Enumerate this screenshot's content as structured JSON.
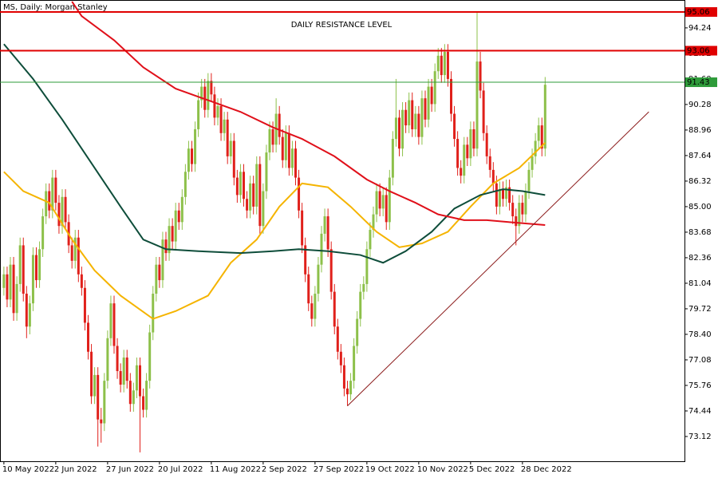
{
  "chart_data": {
    "type": "candlestick",
    "header": "MS, Daily: Morgan Stanley",
    "title": "DAILY RESISTANCE LEVEL",
    "up_color": "#8dc04a",
    "down_color": "#e0201b",
    "ylim": [
      71.84,
      95.68
    ],
    "yticks": [
      73.12,
      74.44,
      75.76,
      77.08,
      {
        "value": 78.4,
        "label": "78.40"
      },
      79.72,
      81.04,
      82.36,
      83.68,
      {
        "value": 85,
        "label": "85.00"
      },
      86.32,
      87.64,
      88.96,
      90.28,
      {
        "value": 91.6,
        "label": "91.60"
      },
      92.92,
      94.24
    ],
    "xlim": [
      -1.2,
      210
    ],
    "xticks": [
      {
        "value": 0,
        "label": "10 May 2022"
      },
      {
        "value": 16,
        "label": "2 Jun 2022"
      },
      {
        "value": 32,
        "label": "27 Jun 2022"
      },
      {
        "value": 48,
        "label": "20 Jul 2022"
      },
      {
        "value": 64,
        "label": "11 Aug 2022"
      },
      {
        "value": 80,
        "label": "2 Sep 2022"
      },
      {
        "value": 96,
        "label": "27 Sep 2022"
      },
      {
        "value": 112,
        "label": "19 Oct 2022"
      },
      {
        "value": 128,
        "label": "10 Nov 2022"
      },
      {
        "value": 144,
        "label": "5 Dec 2022"
      },
      {
        "value": 160,
        "label": "28 Dec 2022"
      }
    ],
    "ohlc": [
      [
        80.8,
        81.9,
        80.4,
        81.5
      ],
      [
        81.5,
        81.9,
        79.8,
        80.2
      ],
      [
        80.2,
        82.4,
        79.8,
        82.0
      ],
      [
        82.0,
        82.4,
        79.1,
        79.5
      ],
      [
        79.5,
        81.4,
        79.1,
        81.0
      ],
      [
        81.0,
        83.4,
        80.6,
        83.0
      ],
      [
        83.0,
        83.4,
        80.1,
        80.5
      ],
      [
        80.5,
        80.9,
        78.2,
        78.8
      ],
      [
        78.8,
        80.4,
        78.4,
        80.0
      ],
      [
        80.0,
        82.9,
        79.6,
        82.5
      ],
      [
        82.5,
        82.9,
        80.8,
        81.2
      ],
      [
        81.2,
        83.2,
        80.8,
        82.8
      ],
      [
        82.8,
        84.9,
        82.4,
        84.5
      ],
      [
        84.5,
        86.2,
        84.1,
        85.8
      ],
      [
        85.8,
        86.2,
        84.4,
        84.8
      ],
      [
        84.8,
        86.9,
        84.4,
        86.5
      ],
      [
        86.5,
        86.9,
        84.8,
        85.2
      ],
      [
        85.2,
        85.6,
        83.6,
        84.0
      ],
      [
        84.0,
        85.9,
        83.6,
        85.5
      ],
      [
        85.5,
        85.9,
        83.8,
        84.2
      ],
      [
        84.2,
        84.6,
        82.6,
        83.0
      ],
      [
        83.0,
        83.4,
        81.8,
        82.2
      ],
      [
        82.2,
        83.8,
        81.8,
        83.4
      ],
      [
        83.4,
        83.8,
        81.1,
        81.5
      ],
      [
        81.5,
        81.9,
        80.4,
        80.8
      ],
      [
        80.8,
        81.2,
        78.6,
        79.0
      ],
      [
        79.0,
        79.4,
        77.1,
        77.5
      ],
      [
        77.5,
        77.9,
        74.8,
        75.2
      ],
      [
        75.2,
        76.7,
        74.8,
        76.3
      ],
      [
        76.3,
        76.7,
        72.6,
        74.0
      ],
      [
        74.0,
        74.6,
        72.8,
        73.8
      ],
      [
        73.8,
        76.4,
        73.4,
        76.0
      ],
      [
        76.0,
        78.6,
        75.6,
        78.2
      ],
      [
        78.2,
        80.4,
        77.8,
        80.0
      ],
      [
        80.0,
        80.4,
        77.4,
        77.8
      ],
      [
        77.8,
        78.2,
        76.1,
        76.5
      ],
      [
        76.5,
        76.9,
        75.4,
        75.8
      ],
      [
        75.8,
        77.6,
        75.4,
        77.2
      ],
      [
        77.2,
        77.6,
        75.6,
        76.0
      ],
      [
        76.0,
        76.4,
        74.4,
        74.8
      ],
      [
        74.8,
        75.9,
        74.4,
        75.5
      ],
      [
        75.5,
        77.2,
        75.1,
        76.8
      ],
      [
        76.8,
        77.2,
        72.3,
        75.2
      ],
      [
        75.2,
        75.6,
        74.1,
        74.5
      ],
      [
        74.5,
        76.4,
        74.1,
        76.0
      ],
      [
        76.0,
        78.9,
        75.6,
        78.5
      ],
      [
        78.5,
        80.9,
        78.1,
        80.5
      ],
      [
        80.5,
        82.4,
        80.1,
        82.0
      ],
      [
        82.0,
        82.4,
        80.8,
        81.2
      ],
      [
        81.2,
        83.7,
        80.8,
        83.3
      ],
      [
        83.3,
        83.7,
        82.2,
        82.6
      ],
      [
        82.6,
        84.4,
        82.2,
        84.0
      ],
      [
        84.0,
        84.4,
        82.8,
        83.2
      ],
      [
        83.2,
        85.2,
        82.8,
        84.8
      ],
      [
        84.8,
        85.2,
        83.8,
        84.2
      ],
      [
        84.2,
        85.9,
        83.8,
        85.5
      ],
      [
        85.5,
        87.2,
        85.1,
        86.8
      ],
      [
        86.8,
        88.4,
        86.4,
        88.0
      ],
      [
        88.0,
        88.4,
        86.8,
        87.2
      ],
      [
        87.2,
        89.4,
        86.8,
        89.0
      ],
      [
        89.0,
        90.9,
        88.6,
        90.5
      ],
      [
        90.5,
        91.6,
        90.1,
        91.2
      ],
      [
        91.2,
        91.6,
        89.6,
        90.0
      ],
      [
        90.0,
        91.9,
        89.6,
        91.5
      ],
      [
        91.5,
        91.9,
        90.4,
        90.8
      ],
      [
        90.8,
        91.2,
        89.2,
        89.6
      ],
      [
        89.6,
        90.6,
        89.2,
        90.2
      ],
      [
        90.2,
        90.6,
        88.4,
        88.8
      ],
      [
        88.8,
        89.9,
        88.4,
        89.5
      ],
      [
        89.5,
        89.9,
        87.2,
        87.6
      ],
      [
        87.6,
        88.8,
        87.2,
        88.4
      ],
      [
        88.4,
        88.8,
        86.1,
        86.5
      ],
      [
        86.5,
        86.9,
        85.2,
        85.6
      ],
      [
        85.6,
        87.2,
        85.2,
        86.8
      ],
      [
        86.8,
        87.2,
        85.0,
        85.4
      ],
      [
        85.4,
        85.8,
        84.4,
        84.8
      ],
      [
        84.8,
        86.6,
        84.4,
        86.2
      ],
      [
        86.2,
        86.6,
        84.6,
        85.0
      ],
      [
        85.0,
        87.6,
        84.6,
        87.2
      ],
      [
        87.2,
        87.6,
        83.6,
        84.0
      ],
      [
        84.0,
        86.2,
        83.6,
        85.8
      ],
      [
        85.8,
        88.2,
        85.4,
        87.8
      ],
      [
        87.8,
        89.4,
        87.4,
        89.0
      ],
      [
        89.0,
        89.4,
        87.8,
        88.2
      ],
      [
        88.2,
        90.6,
        87.8,
        89.8
      ],
      [
        89.8,
        90.2,
        88.2,
        88.6
      ],
      [
        88.6,
        89.0,
        87.0,
        87.4
      ],
      [
        87.4,
        89.2,
        87.0,
        88.8
      ],
      [
        88.8,
        89.2,
        86.6,
        87.0
      ],
      [
        87.0,
        88.4,
        86.6,
        88.0
      ],
      [
        88.0,
        88.4,
        86.1,
        86.5
      ],
      [
        86.5,
        86.9,
        84.4,
        84.8
      ],
      [
        84.8,
        85.2,
        82.6,
        83.0
      ],
      [
        83.0,
        83.4,
        81.1,
        81.5
      ],
      [
        81.5,
        81.9,
        79.6,
        80.0
      ],
      [
        80.0,
        80.4,
        78.8,
        79.2
      ],
      [
        79.2,
        80.9,
        78.8,
        80.5
      ],
      [
        80.5,
        82.4,
        80.1,
        82.0
      ],
      [
        82.0,
        84.0,
        81.6,
        83.6
      ],
      [
        83.6,
        84.9,
        83.2,
        84.5
      ],
      [
        84.5,
        84.9,
        82.4,
        82.8
      ],
      [
        82.8,
        83.2,
        80.2,
        80.6
      ],
      [
        80.6,
        81.0,
        78.4,
        78.8
      ],
      [
        78.8,
        79.2,
        77.1,
        77.5
      ],
      [
        77.5,
        77.9,
        76.4,
        76.8
      ],
      [
        76.8,
        77.2,
        75.2,
        75.6
      ],
      [
        75.6,
        76.0,
        74.7,
        75.3
      ],
      [
        75.3,
        76.4,
        75.0,
        76.0
      ],
      [
        76.0,
        78.2,
        75.6,
        77.8
      ],
      [
        77.8,
        79.6,
        77.4,
        79.2
      ],
      [
        79.2,
        81.0,
        78.8,
        80.6
      ],
      [
        80.6,
        81.4,
        80.2,
        81.0
      ],
      [
        81.0,
        83.2,
        80.6,
        82.8
      ],
      [
        82.8,
        84.2,
        82.4,
        83.8
      ],
      [
        83.8,
        85.0,
        83.4,
        84.6
      ],
      [
        84.6,
        86.2,
        84.2,
        85.8
      ],
      [
        85.8,
        86.2,
        84.5,
        84.9
      ],
      [
        84.9,
        86.0,
        84.5,
        85.6
      ],
      [
        85.6,
        86.0,
        83.8,
        84.2
      ],
      [
        84.2,
        86.9,
        83.8,
        86.5
      ],
      [
        86.5,
        88.9,
        86.1,
        88.5
      ],
      [
        88.5,
        91.6,
        88.1,
        89.6
      ],
      [
        89.6,
        90.0,
        87.6,
        88.0
      ],
      [
        88.0,
        90.4,
        87.6,
        90.0
      ],
      [
        90.0,
        90.4,
        88.8,
        89.2
      ],
      [
        89.2,
        90.9,
        88.8,
        90.5
      ],
      [
        90.5,
        90.9,
        88.6,
        89.0
      ],
      [
        89.0,
        90.2,
        88.6,
        89.8
      ],
      [
        89.8,
        90.2,
        88.2,
        88.6
      ],
      [
        88.6,
        91.0,
        88.2,
        90.6
      ],
      [
        90.6,
        91.0,
        89.1,
        89.5
      ],
      [
        89.5,
        91.6,
        89.1,
        91.2
      ],
      [
        91.2,
        91.6,
        89.9,
        90.3
      ],
      [
        90.3,
        92.4,
        89.9,
        92.0
      ],
      [
        92.0,
        93.2,
        91.6,
        92.8
      ],
      [
        92.8,
        93.2,
        91.4,
        91.8
      ],
      [
        91.8,
        93.4,
        91.4,
        93.0
      ],
      [
        93.0,
        93.4,
        91.2,
        91.6
      ],
      [
        91.6,
        92.0,
        89.4,
        89.8
      ],
      [
        89.8,
        90.2,
        88.1,
        88.5
      ],
      [
        88.5,
        88.9,
        86.6,
        87.0
      ],
      [
        87.0,
        87.4,
        86.2,
        86.6
      ],
      [
        86.6,
        88.6,
        86.2,
        88.2
      ],
      [
        88.2,
        88.6,
        87.1,
        87.5
      ],
      [
        87.5,
        89.4,
        87.1,
        89.0
      ],
      [
        89.0,
        89.4,
        87.6,
        88.0
      ],
      [
        88.0,
        95.06,
        87.6,
        92.5
      ],
      [
        92.5,
        93.0,
        90.6,
        91.0
      ],
      [
        91.0,
        91.4,
        88.4,
        88.8
      ],
      [
        88.8,
        89.2,
        87.2,
        87.6
      ],
      [
        87.6,
        88.0,
        86.5,
        86.9
      ],
      [
        86.9,
        87.3,
        85.8,
        86.2
      ],
      [
        86.2,
        86.6,
        84.6,
        85.0
      ],
      [
        85.0,
        86.3,
        84.6,
        85.9
      ],
      [
        85.9,
        86.3,
        85.0,
        85.4
      ],
      [
        85.4,
        86.4,
        85.0,
        86.0
      ],
      [
        86.0,
        86.4,
        84.8,
        85.2
      ],
      [
        85.2,
        85.6,
        84.1,
        84.5
      ],
      [
        84.5,
        84.9,
        83.0,
        84.0
      ],
      [
        84.0,
        85.6,
        83.6,
        85.2
      ],
      [
        85.2,
        85.6,
        84.2,
        84.6
      ],
      [
        84.6,
        86.2,
        84.2,
        85.8
      ],
      [
        85.8,
        87.3,
        85.4,
        86.9
      ],
      [
        86.9,
        88.0,
        86.5,
        87.6
      ],
      [
        87.6,
        88.8,
        87.2,
        88.4
      ],
      [
        88.4,
        89.6,
        88.0,
        89.2
      ],
      [
        89.2,
        89.6,
        87.6,
        88.0
      ],
      [
        88.0,
        91.7,
        87.6,
        91.3
      ]
    ],
    "lines": [
      {
        "color": "#f5b400",
        "x": [
          0,
          6,
          14,
          21,
          28,
          36,
          46,
          53,
          63,
          70,
          78,
          85,
          92,
          100,
          107,
          115,
          122,
          129,
          137,
          144,
          151,
          159,
          167
        ],
        "values": [
          86.8,
          85.8,
          85.2,
          83.3,
          81.7,
          80.4,
          79.2,
          79.6,
          80.4,
          82.1,
          83.3,
          85.0,
          86.2,
          86.0,
          85.0,
          83.7,
          82.9,
          83.1,
          83.7,
          85.0,
          86.2,
          87.0,
          88.3
        ]
      },
      {
        "color": "#0e4d3a",
        "x": [
          0,
          9,
          18,
          28,
          36,
          43,
          50,
          60,
          73,
          83,
          91,
          100,
          110,
          117,
          124,
          132,
          139,
          147,
          154,
          160,
          167
        ],
        "values": [
          93.4,
          91.6,
          89.5,
          87.0,
          85.0,
          83.3,
          82.8,
          82.7,
          82.6,
          82.7,
          82.8,
          82.7,
          82.5,
          82.1,
          82.7,
          83.7,
          84.9,
          85.6,
          85.9,
          85.8,
          85.6
        ]
      },
      {
        "color": "#e0101a",
        "x": [
          21,
          24,
          34,
          43,
          53,
          63,
          73,
          83,
          92,
          102,
          112,
          119,
          127,
          134,
          142,
          149,
          156,
          167
        ],
        "values": [
          95.6,
          94.85,
          93.6,
          92.2,
          91.1,
          90.5,
          89.9,
          89.1,
          88.5,
          87.6,
          86.4,
          85.8,
          85.2,
          84.6,
          84.3,
          84.3,
          84.2,
          84.05
        ]
      }
    ],
    "levels": [
      {
        "value": 95.06,
        "color": "#e00000"
      },
      {
        "value": 93.06,
        "color": "#e00000"
      },
      {
        "value": 91.43,
        "color": "#2e9b3a"
      }
    ],
    "trendline": {
      "color": "#8b1a1a",
      "x": [
        106,
        199
      ],
      "values": [
        74.7,
        89.9
      ]
    }
  }
}
